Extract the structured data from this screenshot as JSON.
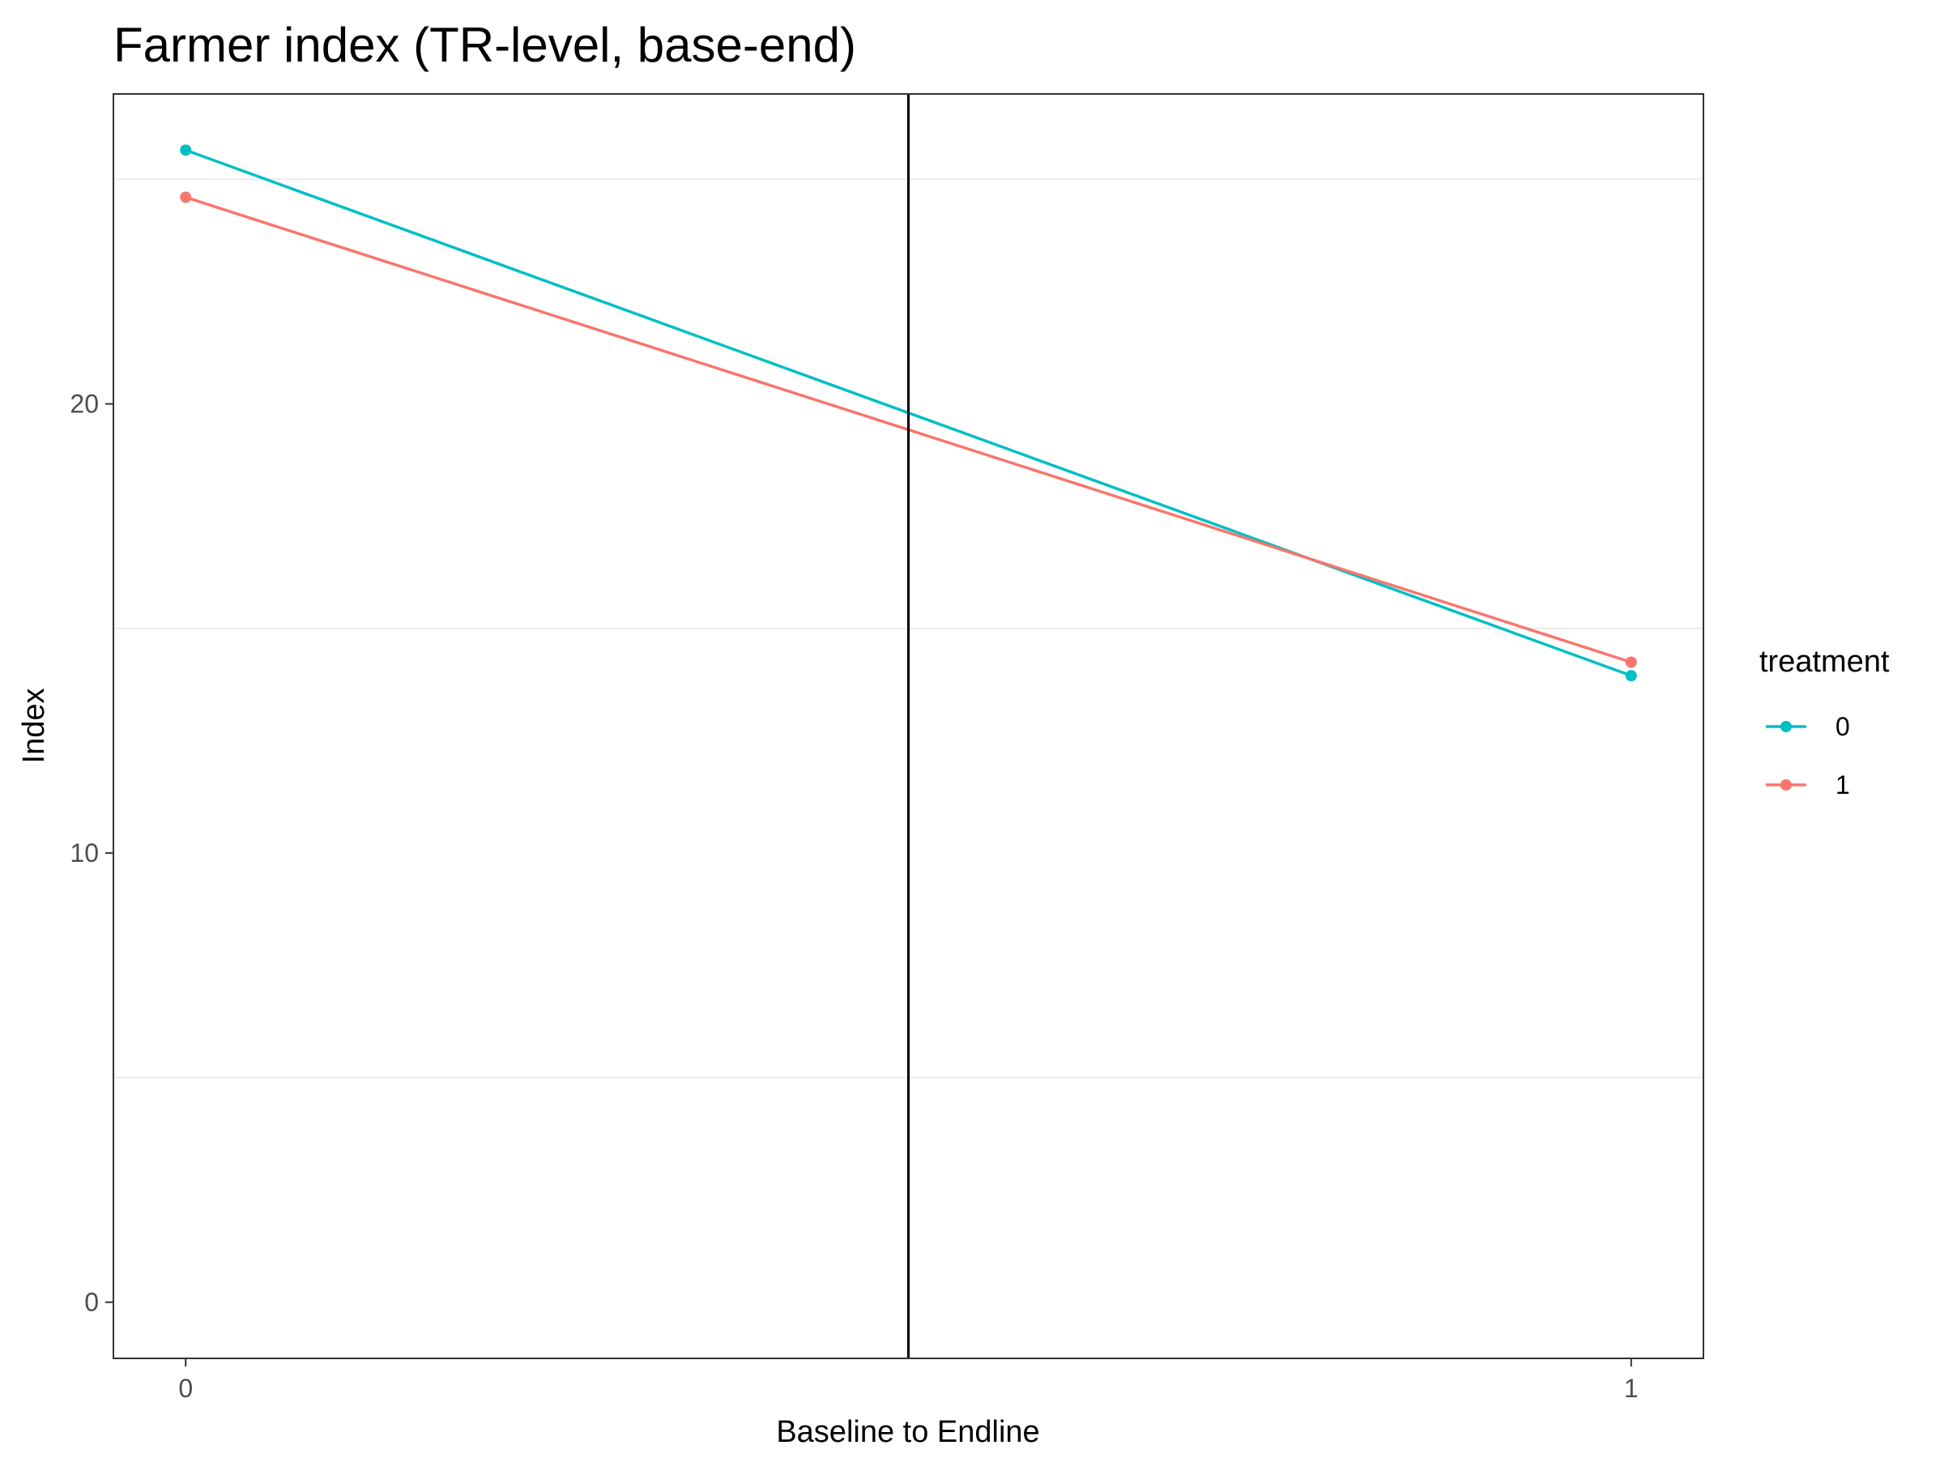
{
  "chart_data": {
    "type": "line",
    "title": "Farmer index (TR-level, base-end)",
    "xlabel": "Baseline to Endline",
    "ylabel": "Index",
    "x": [
      0,
      1
    ],
    "x_ticks": [
      "0",
      "1"
    ],
    "y_ticks": [
      "0",
      "10",
      "20"
    ],
    "xlim": [
      -0.05,
      1.05
    ],
    "ylim": [
      -1.25,
      26.9
    ],
    "grid": true,
    "legend": {
      "title": "treatment",
      "placement": "right"
    },
    "series": [
      {
        "name": "0",
        "values": [
          25.65,
          13.95
        ],
        "color": "#00BFC4"
      },
      {
        "name": "1",
        "values": [
          24.6,
          14.25
        ],
        "color": "#F8766D"
      }
    ],
    "reference_line": {
      "orientation": "vertical",
      "x": 0.5,
      "color": "#000000"
    }
  }
}
